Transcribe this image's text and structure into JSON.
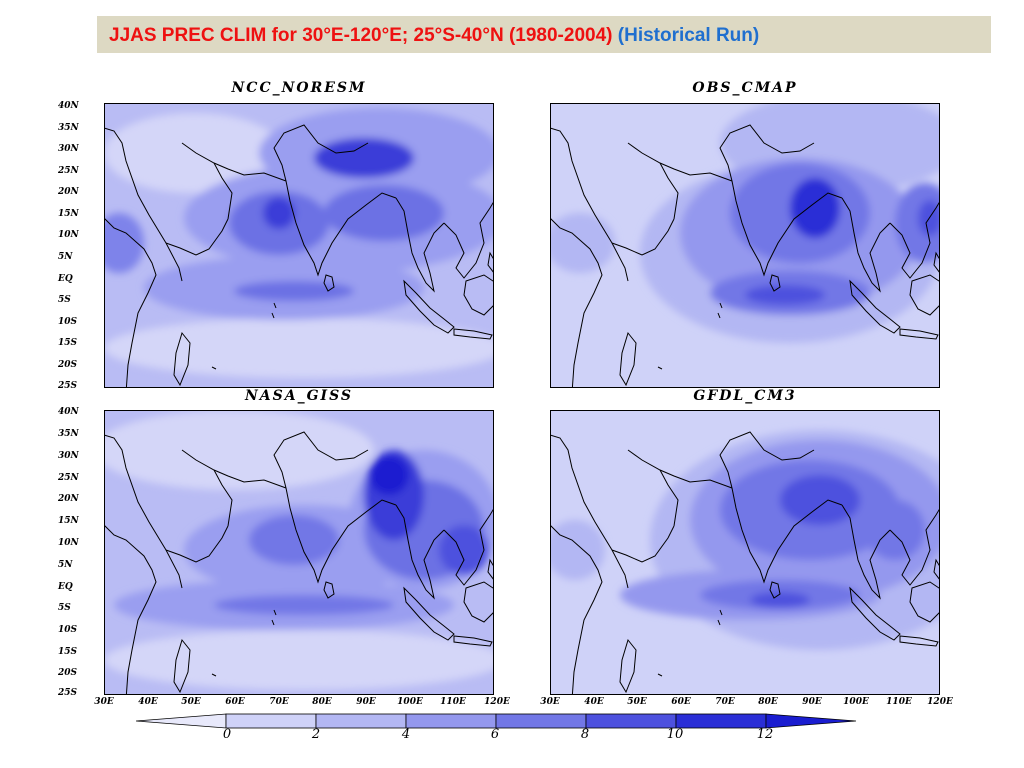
{
  "title": {
    "main": "JJAS PREC CLIM for 30°E-120°E; 25°S-40°N (1980-2004)",
    "sub": "(Historical Run)"
  },
  "panels": [
    {
      "name": "NCC_NORESM"
    },
    {
      "name": "OBS_CMAP"
    },
    {
      "name": "NASA_GISS"
    },
    {
      "name": "GFDL_CM3"
    }
  ],
  "lat_labels": [
    "40N",
    "35N",
    "30N",
    "25N",
    "20N",
    "15N",
    "10N",
    "5N",
    "EQ",
    "5S",
    "10S",
    "15S",
    "20S",
    "25S"
  ],
  "lat_labels_lower": [
    "40N",
    "35N",
    "30N",
    "25N",
    "20N",
    "15N",
    "10N",
    "5N",
    "EQ",
    "5S",
    "10S",
    "15S",
    "20S",
    "25S"
  ],
  "lon_labels_left": [
    "30E",
    "40E",
    "50E",
    "60E",
    "70E",
    "80E",
    "90E",
    "100E",
    "110E",
    "120E"
  ],
  "lon_labels_right": [
    "30E",
    "40E",
    "50E",
    "60E",
    "70E",
    "80E",
    "90E",
    "100E",
    "110E",
    "120E"
  ],
  "colorbar": {
    "labels": [
      "0",
      "2",
      "4",
      "6",
      "8",
      "10",
      "12"
    ],
    "colors": [
      "#e8e9fb",
      "#cfd2f8",
      "#b3b7f3",
      "#9498ee",
      "#7277e6",
      "#4d51de",
      "#2a2ed6",
      "#1a1dd0"
    ]
  }
}
